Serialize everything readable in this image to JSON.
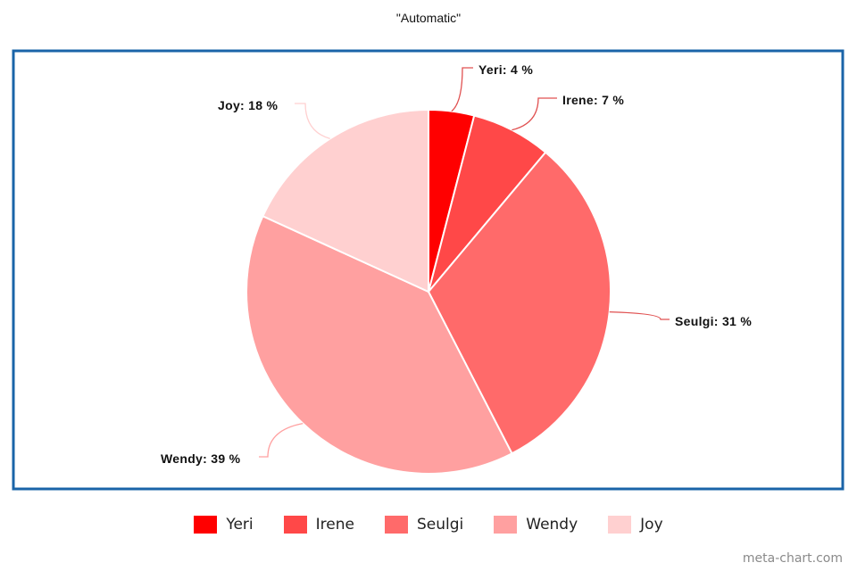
{
  "chart_data": {
    "type": "pie",
    "title": "\"Automatic\"",
    "categories": [
      "Yeri",
      "Irene",
      "Seulgi",
      "Wendy",
      "Joy"
    ],
    "values": [
      4,
      7,
      31,
      39,
      18
    ],
    "labels": [
      "Yeri: 4 %",
      "Irene: 7 %",
      "Seulgi: 31 %",
      "Wendy: 39 %",
      "Joy: 18 %"
    ],
    "colors": [
      "#ff0000",
      "#ff4848",
      "#ff6a6a",
      "#ffa0a0",
      "#ffd0d0"
    ],
    "leader_color": "#e05050",
    "frame_color": "#1a64a8",
    "legend_position": "bottom"
  },
  "legend": {
    "items": [
      "Yeri",
      "Irene",
      "Seulgi",
      "Wendy",
      "Joy"
    ]
  },
  "watermark": "meta-chart.com"
}
